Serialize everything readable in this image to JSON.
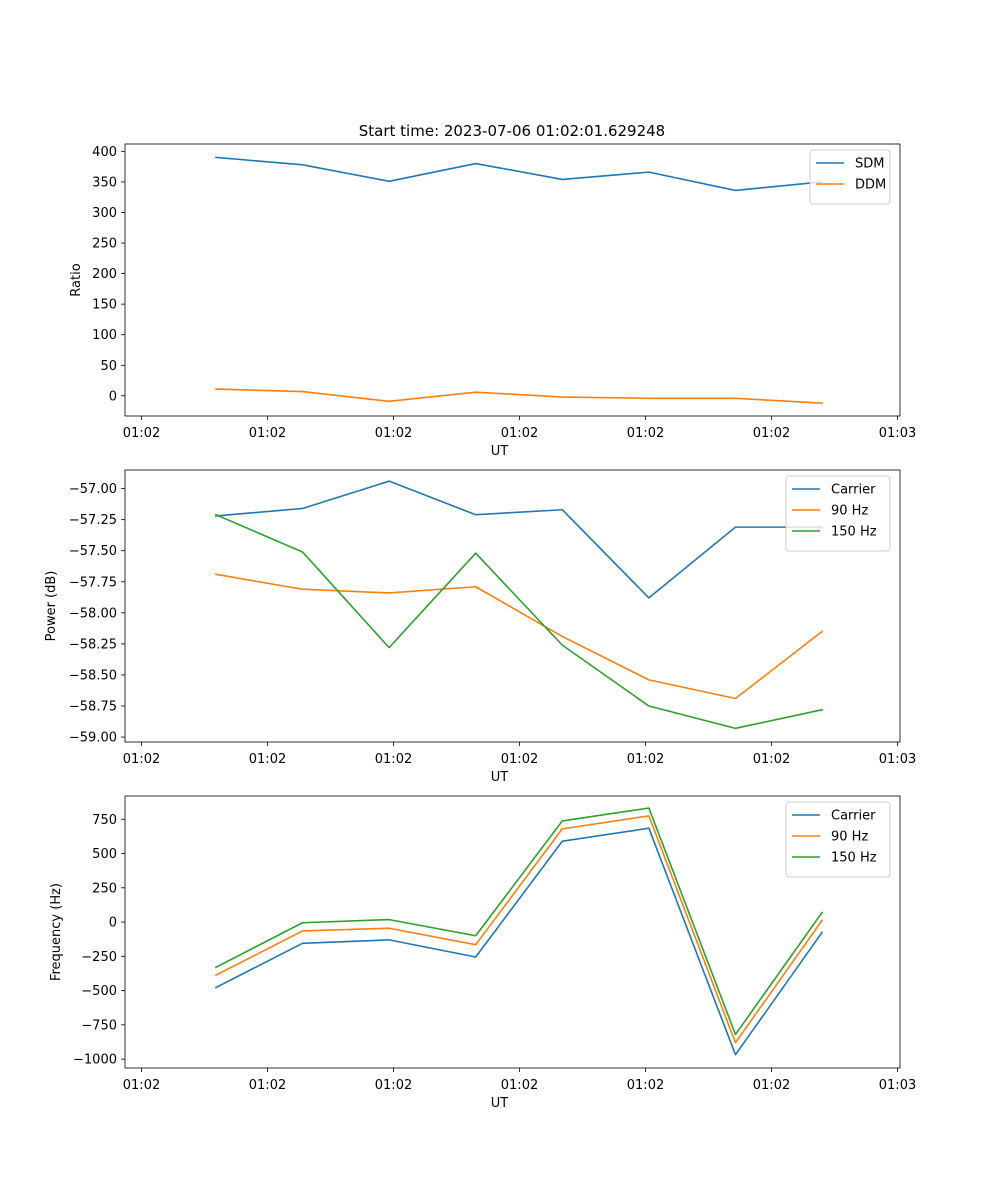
{
  "title": "Start time: 2023-07-06 01:02:01.629248",
  "colors": {
    "series1": "#1f77b4",
    "series2": "#ff7f0e",
    "series3": "#2ca02c"
  },
  "chart_data": [
    {
      "type": "line",
      "xlabel": "UT",
      "ylabel": "Ratio",
      "x_tick_labels": [
        "01:02",
        "01:02",
        "01:02",
        "01:02",
        "01:02",
        "01:02",
        "01:03"
      ],
      "y_ticks": [
        0,
        50,
        100,
        150,
        200,
        250,
        300,
        350,
        400
      ],
      "ylim": [
        -33,
        412
      ],
      "x": [
        1,
        2,
        3,
        4,
        5,
        6,
        7,
        8
      ],
      "xlim": [
        -0.05,
        8.9
      ],
      "legend": "top-right",
      "series": [
        {
          "name": "SDM",
          "values": [
            390,
            378,
            351,
            380,
            354,
            366,
            336,
            350
          ]
        },
        {
          "name": "DDM",
          "values": [
            11,
            7,
            -9,
            6,
            -2,
            -4,
            -4,
            -12
          ]
        }
      ]
    },
    {
      "type": "line",
      "xlabel": "UT",
      "ylabel": "Power (dB)",
      "x_tick_labels": [
        "01:02",
        "01:02",
        "01:02",
        "01:02",
        "01:02",
        "01:02",
        "01:03"
      ],
      "y_ticks": [
        -59.0,
        -58.75,
        -58.5,
        -58.25,
        -58.0,
        -57.75,
        -57.5,
        -57.25,
        -57.0
      ],
      "y_tick_labels": [
        "−59.00",
        "−58.75",
        "−58.50",
        "−58.25",
        "−58.00",
        "−57.75",
        "−57.50",
        "−57.25",
        "−57.00"
      ],
      "ylim": [
        -59.04,
        -56.85
      ],
      "x": [
        1,
        2,
        3,
        4,
        5,
        6,
        7,
        8
      ],
      "xlim": [
        -0.05,
        8.9
      ],
      "legend": "top-right",
      "series": [
        {
          "name": "Carrier",
          "values": [
            -57.22,
            -57.16,
            -56.94,
            -57.21,
            -57.17,
            -57.88,
            -57.31,
            -57.31
          ]
        },
        {
          "name": "90 Hz",
          "values": [
            -57.69,
            -57.81,
            -57.84,
            -57.79,
            -58.19,
            -58.54,
            -58.69,
            -58.15
          ]
        },
        {
          "name": "150 Hz",
          "values": [
            -57.21,
            -57.51,
            -58.28,
            -57.52,
            -58.26,
            -58.75,
            -58.93,
            -58.78
          ]
        }
      ]
    },
    {
      "type": "line",
      "xlabel": "UT",
      "ylabel": "Frequency (Hz)",
      "x_tick_labels": [
        "01:02",
        "01:02",
        "01:02",
        "01:02",
        "01:02",
        "01:02",
        "01:03"
      ],
      "y_ticks": [
        -1000,
        -750,
        -500,
        -250,
        0,
        250,
        500,
        750
      ],
      "y_tick_labels": [
        "−1000",
        "−750",
        "−500",
        "−250",
        "0",
        "250",
        "500",
        "750"
      ],
      "ylim": [
        -1065,
        920
      ],
      "x": [
        1,
        2,
        3,
        4,
        5,
        6,
        7,
        8
      ],
      "xlim": [
        -0.05,
        8.9
      ],
      "legend": "top-right",
      "series": [
        {
          "name": "Carrier",
          "values": [
            -478,
            -155,
            -130,
            -255,
            590,
            685,
            -968,
            -75
          ]
        },
        {
          "name": "90 Hz",
          "values": [
            -388,
            -65,
            -45,
            -165,
            680,
            775,
            -880,
            12
          ]
        },
        {
          "name": "150 Hz",
          "values": [
            -330,
            -5,
            18,
            -100,
            738,
            832,
            -820,
            70
          ]
        }
      ]
    }
  ]
}
